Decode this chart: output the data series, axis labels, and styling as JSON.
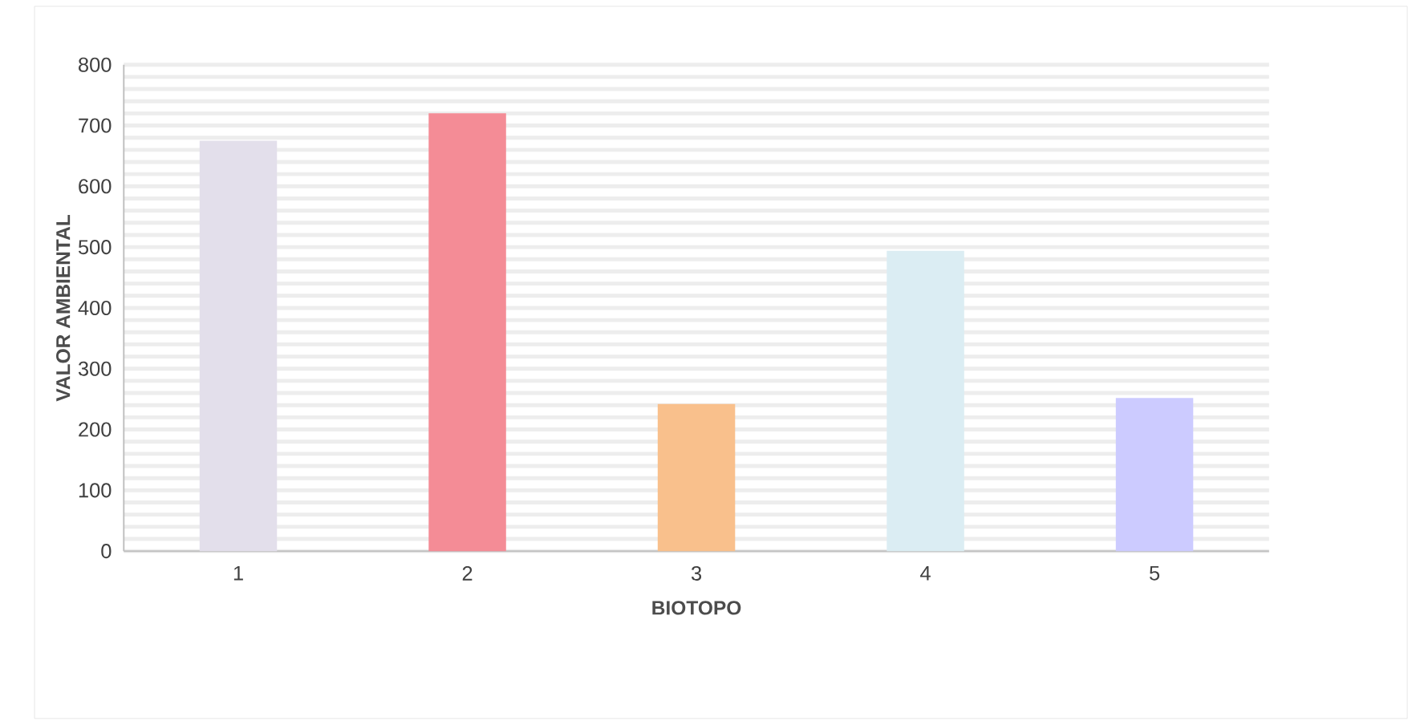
{
  "chart_data": {
    "type": "bar",
    "xlabel": "BIOTOPO",
    "ylabel": "VALOR AMBIENTAL",
    "categories": [
      "1",
      "2",
      "3",
      "4",
      "5"
    ],
    "values": [
      675,
      720,
      242,
      494,
      252
    ],
    "colors": [
      "#e3dfeb",
      "#f48c96",
      "#f9c08c",
      "#dbedf3",
      "#cccbff"
    ],
    "ylim": [
      0,
      800
    ],
    "yticks": [
      0,
      100,
      200,
      300,
      400,
      500,
      600,
      700,
      800
    ],
    "grid": "y"
  }
}
